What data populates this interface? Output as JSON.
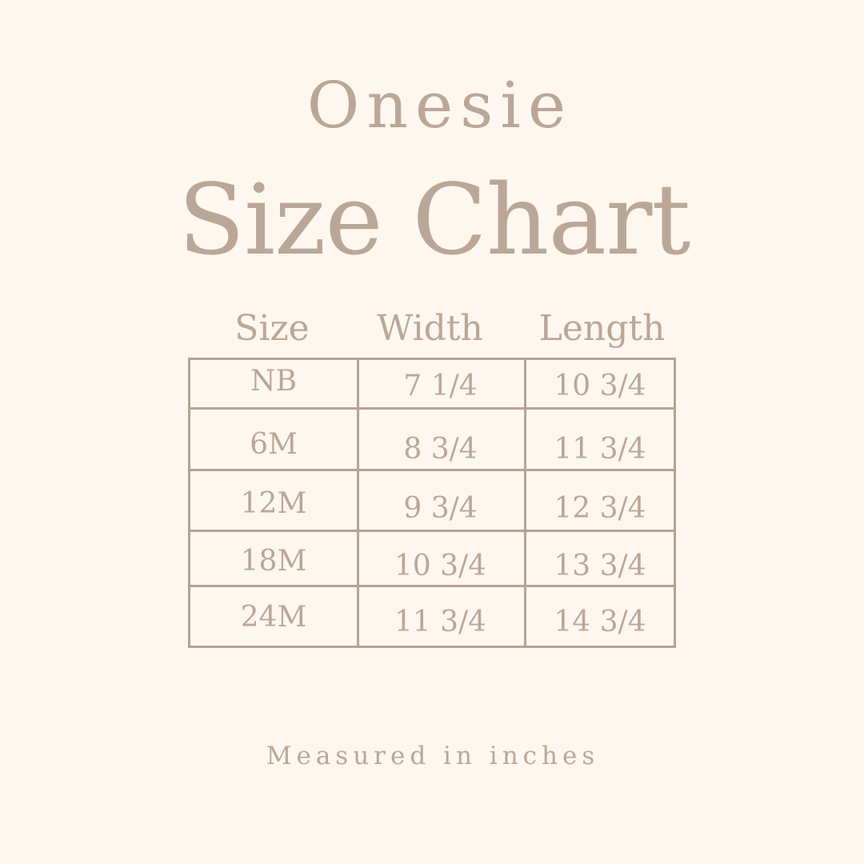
{
  "subtitle": "Onesie",
  "title": "Size Chart",
  "table": {
    "headers": [
      "Size",
      "Width",
      "Length"
    ],
    "rows": [
      [
        "NB",
        "7 1/4",
        "10 3/4"
      ],
      [
        "6M",
        "8 3/4",
        "11 3/4"
      ],
      [
        "12M",
        "9 3/4",
        "12 3/4"
      ],
      [
        "18M",
        "10 3/4",
        "13 3/4"
      ],
      [
        "24M",
        "11 3/4",
        "14 3/4"
      ]
    ]
  },
  "footer": "Measured in inches",
  "colors": {
    "background": "#fdf7f0",
    "text": "#bba797",
    "lines": "#b5a393"
  }
}
